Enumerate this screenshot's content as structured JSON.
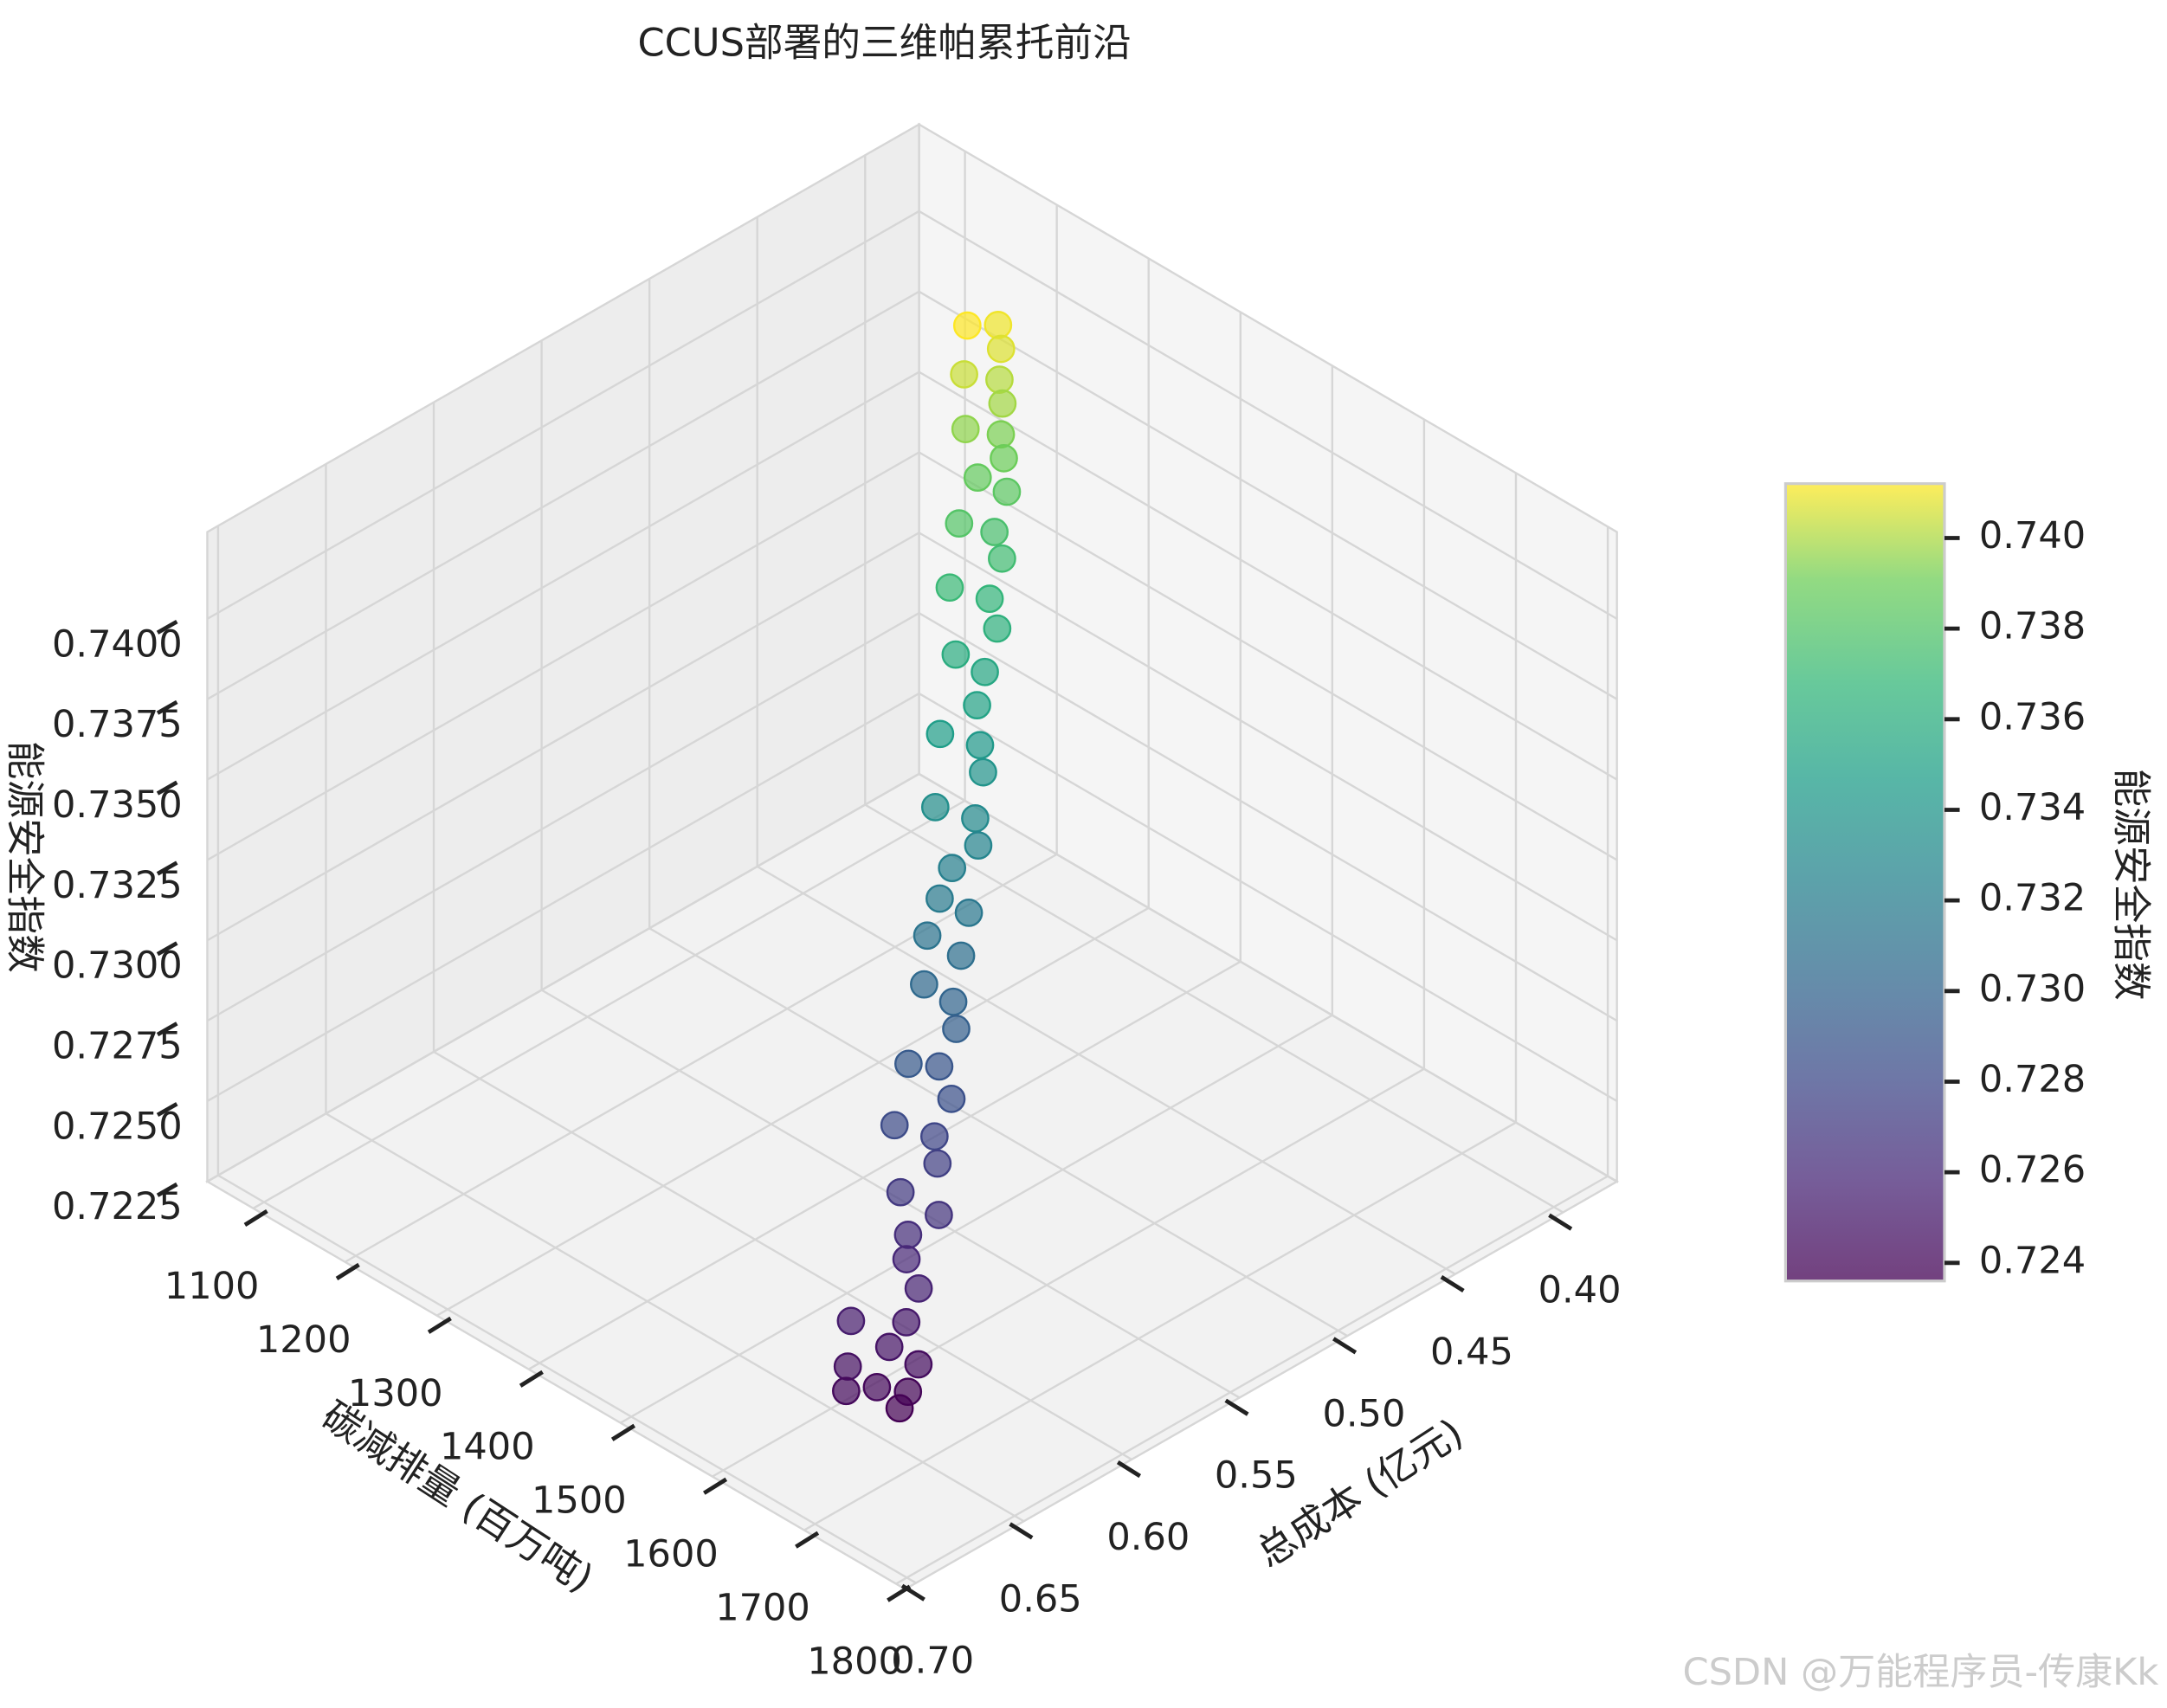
{
  "chart_data": {
    "type": "scatter3d",
    "title": "CCUS部署的三维帕累托前沿",
    "xlabel": "总成本 (亿元)",
    "ylabel": "碳减排量 (百万吨)",
    "zlabel": "能源安全指数",
    "x": [
      0.648,
      0.642,
      0.65,
      0.66,
      0.635,
      0.655,
      0.64,
      0.63,
      0.645,
      0.62,
      0.615,
      0.61,
      0.6,
      0.605,
      0.59,
      0.585,
      0.595,
      0.575,
      0.57,
      0.58,
      0.56,
      0.555,
      0.56,
      0.545,
      0.55,
      0.535,
      0.54,
      0.53,
      0.52,
      0.515,
      0.525,
      0.505,
      0.5,
      0.51,
      0.495,
      0.485,
      0.49,
      0.475,
      0.47,
      0.48,
      0.46,
      0.455,
      0.465,
      0.445,
      0.45,
      0.44,
      0.435,
      0.445,
      0.43,
      0.425,
      0.435,
      0.42,
      0.415,
      0.425
    ],
    "y": [
      1670,
      1665,
      1650,
      1640,
      1660,
      1630,
      1640,
      1635,
      1610,
      1625,
      1600,
      1590,
      1600,
      1570,
      1575,
      1560,
      1540,
      1555,
      1530,
      1520,
      1525,
      1510,
      1490,
      1495,
      1470,
      1480,
      1460,
      1450,
      1455,
      1440,
      1420,
      1425,
      1410,
      1390,
      1395,
      1380,
      1360,
      1370,
      1350,
      1330,
      1340,
      1320,
      1305,
      1310,
      1290,
      1295,
      1280,
      1265,
      1270,
      1255,
      1240,
      1245,
      1230,
      1220
    ],
    "z": [
      0.7236,
      0.7238,
      0.724,
      0.7241,
      0.7243,
      0.7245,
      0.7247,
      0.725,
      0.7252,
      0.7255,
      0.7258,
      0.7262,
      0.7266,
      0.727,
      0.7274,
      0.7278,
      0.7282,
      0.7285,
      0.7289,
      0.7292,
      0.7296,
      0.73,
      0.7304,
      0.7308,
      0.7312,
      0.7315,
      0.7318,
      0.7322,
      0.7326,
      0.733,
      0.7334,
      0.7338,
      0.7342,
      0.7346,
      0.735,
      0.7354,
      0.7358,
      0.7362,
      0.7366,
      0.737,
      0.7373,
      0.7376,
      0.738,
      0.7383,
      0.7386,
      0.7389,
      0.7392,
      0.7395,
      0.7398,
      0.7401,
      0.7404,
      0.7407,
      0.741,
      0.7412
    ],
    "xlim": [
      0.375,
      0.705
    ],
    "ylim": [
      1050,
      1810
    ],
    "zlim": [
      0.7225,
      0.7427
    ],
    "xticks": [
      {
        "value": 0.4,
        "label": "0.40"
      },
      {
        "value": 0.45,
        "label": "0.45"
      },
      {
        "value": 0.5,
        "label": "0.50"
      },
      {
        "value": 0.55,
        "label": "0.55"
      },
      {
        "value": 0.6,
        "label": "0.60"
      },
      {
        "value": 0.65,
        "label": "0.65"
      },
      {
        "value": 0.7,
        "label": "0.70"
      }
    ],
    "yticks": [
      1100,
      1200,
      1300,
      1400,
      1500,
      1600,
      1700,
      1800
    ],
    "zticks": [
      0.7225,
      {
        "value": 0.725,
        "label": "0.7250"
      },
      0.7275,
      {
        "value": 0.73,
        "label": "0.7300"
      },
      0.7325,
      {
        "value": 0.735,
        "label": "0.7350"
      },
      0.7375,
      {
        "value": 0.74,
        "label": "0.7400"
      }
    ],
    "colormap": "viridis",
    "alpha": 0.7,
    "colorbar": {
      "label": "能源安全指数",
      "clim": [
        0.7236,
        0.7412
      ],
      "ticks": [
        0.724,
        0.726,
        0.728,
        {
          "value": 0.73,
          "label": "0.730"
        },
        0.732,
        0.734,
        0.736,
        0.738,
        {
          "value": 0.74,
          "label": "0.740"
        }
      ]
    },
    "watermark": "CSDN @万能程序员-传康Kk"
  }
}
